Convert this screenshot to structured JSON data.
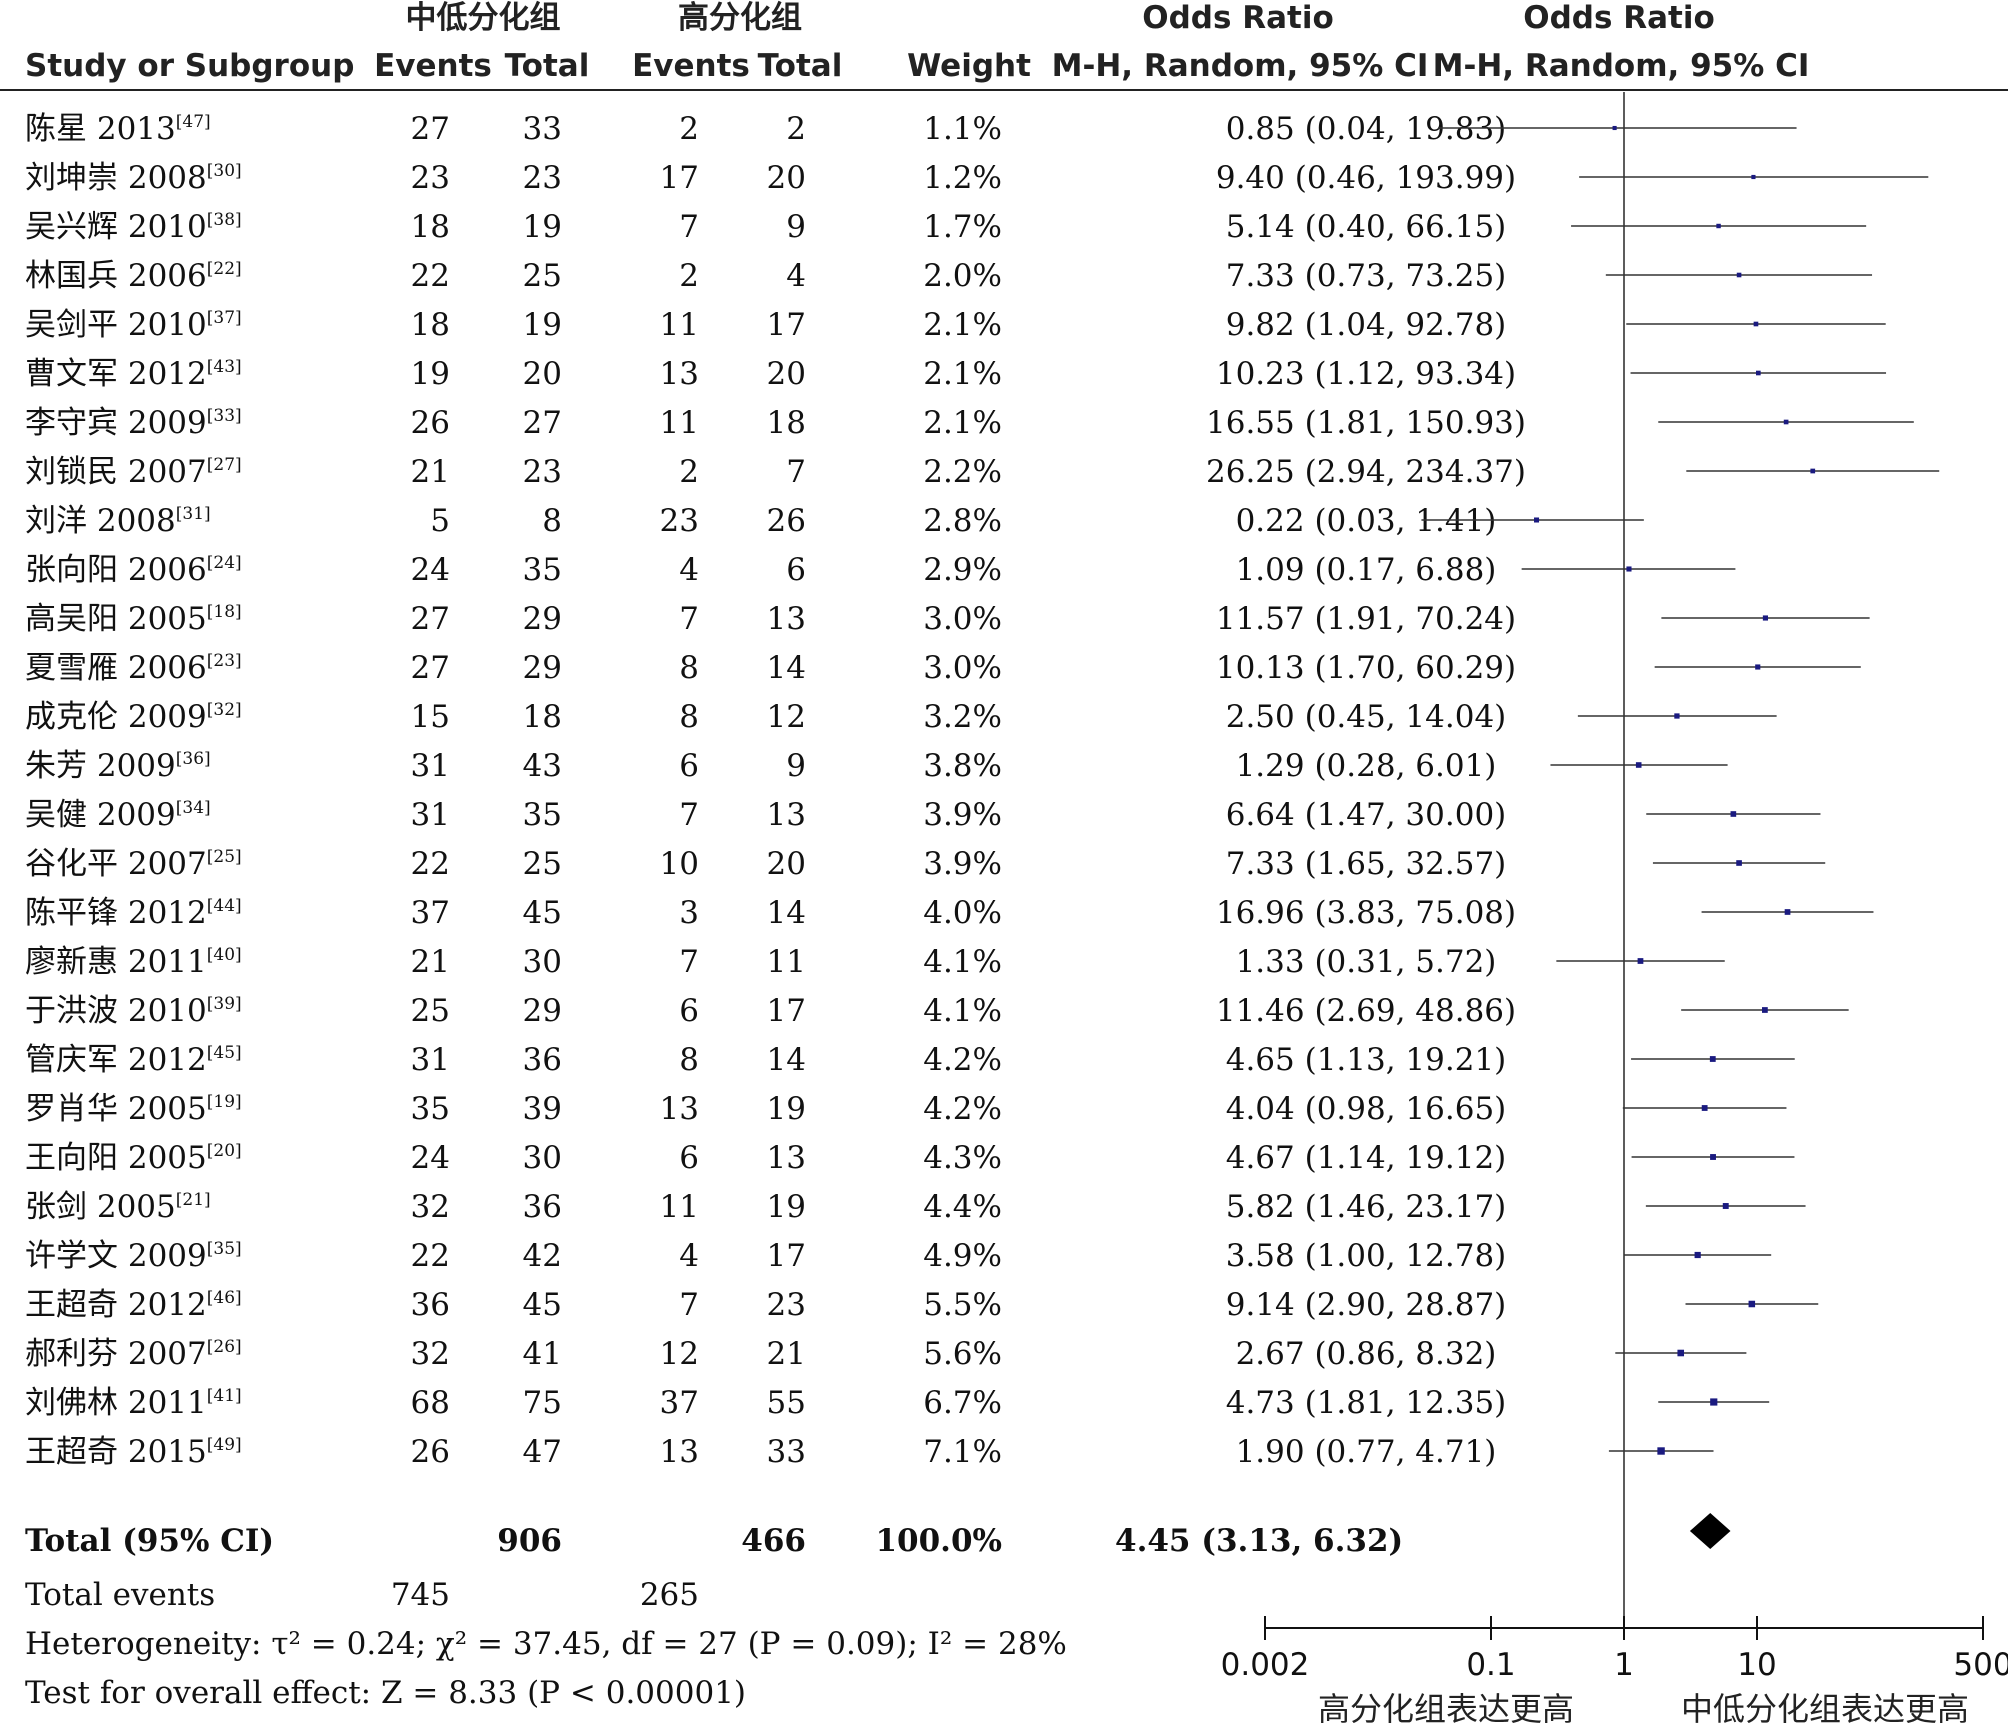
{
  "header": {
    "group1_title": "中低分化组",
    "group2_title": "高分化组",
    "or_title_1": "Odds Ratio",
    "or_title_2": "Odds Ratio",
    "col_study": "Study or Subgroup",
    "col_events_1": "Events",
    "col_total_1": "Total",
    "col_events_2": "Events",
    "col_total_2": "Total",
    "col_weight": "Weight",
    "col_or_ci": "M-H, Random, 95% CI",
    "col_plot_ci": "M-H, Random, 95% CI"
  },
  "chart_data": {
    "type": "forest",
    "x_scale": "log",
    "xlim": [
      0.002,
      500
    ],
    "x_ticks": [
      "0.002",
      "0.1",
      "1",
      "10",
      "500"
    ],
    "favours_left": "高分化组表达更高",
    "favours_right": "中低分化组表达更高",
    "marker_color": "#1a1a80",
    "studies": [
      {
        "name": "陈星 2013",
        "ref": "[47]",
        "events_1": "27",
        "total_1": "33",
        "events_2": "2",
        "total_2": "2",
        "weight": "1.1%",
        "or_text": "0.85 (0.04, 19.83)",
        "or": 0.85,
        "lo": 0.04,
        "hi": 19.83,
        "w": 1.1
      },
      {
        "name": "刘坤崇 2008",
        "ref": "[30]",
        "events_1": "23",
        "total_1": "23",
        "events_2": "17",
        "total_2": "20",
        "weight": "1.2%",
        "or_text": "9.40 (0.46, 193.99)",
        "or": 9.4,
        "lo": 0.46,
        "hi": 193.99,
        "w": 1.2
      },
      {
        "name": "吴兴辉 2010",
        "ref": "[38]",
        "events_1": "18",
        "total_1": "19",
        "events_2": "7",
        "total_2": "9",
        "weight": "1.7%",
        "or_text": "5.14 (0.40, 66.15)",
        "or": 5.14,
        "lo": 0.4,
        "hi": 66.15,
        "w": 1.7
      },
      {
        "name": "林国兵 2006",
        "ref": "[22]",
        "events_1": "22",
        "total_1": "25",
        "events_2": "2",
        "total_2": "4",
        "weight": "2.0%",
        "or_text": "7.33 (0.73, 73.25)",
        "or": 7.33,
        "lo": 0.73,
        "hi": 73.25,
        "w": 2.0
      },
      {
        "name": "吴剑平 2010",
        "ref": "[37]",
        "events_1": "18",
        "total_1": "19",
        "events_2": "11",
        "total_2": "17",
        "weight": "2.1%",
        "or_text": "9.82 (1.04, 92.78)",
        "or": 9.82,
        "lo": 1.04,
        "hi": 92.78,
        "w": 2.1
      },
      {
        "name": "曹文军 2012",
        "ref": "[43]",
        "events_1": "19",
        "total_1": "20",
        "events_2": "13",
        "total_2": "20",
        "weight": "2.1%",
        "or_text": "10.23 (1.12, 93.34)",
        "or": 10.23,
        "lo": 1.12,
        "hi": 93.34,
        "w": 2.1
      },
      {
        "name": "李守宾 2009",
        "ref": "[33]",
        "events_1": "26",
        "total_1": "27",
        "events_2": "11",
        "total_2": "18",
        "weight": "2.1%",
        "or_text": "16.55 (1.81, 150.93)",
        "or": 16.55,
        "lo": 1.81,
        "hi": 150.93,
        "w": 2.1
      },
      {
        "name": "刘锁民 2007",
        "ref": "[27]",
        "events_1": "21",
        "total_1": "23",
        "events_2": "2",
        "total_2": "7",
        "weight": "2.2%",
        "or_text": "26.25 (2.94, 234.37)",
        "or": 26.25,
        "lo": 2.94,
        "hi": 234.37,
        "w": 2.2
      },
      {
        "name": "刘洋 2008",
        "ref": "[31]",
        "events_1": "5",
        "total_1": "8",
        "events_2": "23",
        "total_2": "26",
        "weight": "2.8%",
        "or_text": "0.22 (0.03, 1.41)",
        "or": 0.22,
        "lo": 0.03,
        "hi": 1.41,
        "w": 2.8
      },
      {
        "name": "张向阳 2006",
        "ref": "[24]",
        "events_1": "24",
        "total_1": "35",
        "events_2": "4",
        "total_2": "6",
        "weight": "2.9%",
        "or_text": "1.09 (0.17, 6.88)",
        "or": 1.09,
        "lo": 0.17,
        "hi": 6.88,
        "w": 2.9
      },
      {
        "name": "高吴阳 2005",
        "ref": "[18]",
        "events_1": "27",
        "total_1": "29",
        "events_2": "7",
        "total_2": "13",
        "weight": "3.0%",
        "or_text": "11.57 (1.91, 70.24)",
        "or": 11.57,
        "lo": 1.91,
        "hi": 70.24,
        "w": 3.0
      },
      {
        "name": "夏雪雁 2006",
        "ref": "[23]",
        "events_1": "27",
        "total_1": "29",
        "events_2": "8",
        "total_2": "14",
        "weight": "3.0%",
        "or_text": "10.13 (1.70, 60.29)",
        "or": 10.13,
        "lo": 1.7,
        "hi": 60.29,
        "w": 3.0
      },
      {
        "name": "成克伦 2009",
        "ref": "[32]",
        "events_1": "15",
        "total_1": "18",
        "events_2": "8",
        "total_2": "12",
        "weight": "3.2%",
        "or_text": "2.50 (0.45, 14.04)",
        "or": 2.5,
        "lo": 0.45,
        "hi": 14.04,
        "w": 3.2
      },
      {
        "name": "朱芳 2009",
        "ref": "[36]",
        "events_1": "31",
        "total_1": "43",
        "events_2": "6",
        "total_2": "9",
        "weight": "3.8%",
        "or_text": "1.29 (0.28, 6.01)",
        "or": 1.29,
        "lo": 0.28,
        "hi": 6.01,
        "w": 3.8
      },
      {
        "name": "吴健 2009",
        "ref": "[34]",
        "events_1": "31",
        "total_1": "35",
        "events_2": "7",
        "total_2": "13",
        "weight": "3.9%",
        "or_text": "6.64 (1.47, 30.00)",
        "or": 6.64,
        "lo": 1.47,
        "hi": 30.0,
        "w": 3.9
      },
      {
        "name": "谷化平 2007",
        "ref": "[25]",
        "events_1": "22",
        "total_1": "25",
        "events_2": "10",
        "total_2": "20",
        "weight": "3.9%",
        "or_text": "7.33 (1.65, 32.57)",
        "or": 7.33,
        "lo": 1.65,
        "hi": 32.57,
        "w": 3.9
      },
      {
        "name": "陈平锋 2012",
        "ref": "[44]",
        "events_1": "37",
        "total_1": "45",
        "events_2": "3",
        "total_2": "14",
        "weight": "4.0%",
        "or_text": "16.96 (3.83, 75.08)",
        "or": 16.96,
        "lo": 3.83,
        "hi": 75.08,
        "w": 4.0
      },
      {
        "name": "廖新惠 2011",
        "ref": "[40]",
        "events_1": "21",
        "total_1": "30",
        "events_2": "7",
        "total_2": "11",
        "weight": "4.1%",
        "or_text": "1.33 (0.31, 5.72)",
        "or": 1.33,
        "lo": 0.31,
        "hi": 5.72,
        "w": 4.1
      },
      {
        "name": "于洪波 2010",
        "ref": "[39]",
        "events_1": "25",
        "total_1": "29",
        "events_2": "6",
        "total_2": "17",
        "weight": "4.1%",
        "or_text": "11.46 (2.69, 48.86)",
        "or": 11.46,
        "lo": 2.69,
        "hi": 48.86,
        "w": 4.1
      },
      {
        "name": "管庆军 2012",
        "ref": "[45]",
        "events_1": "31",
        "total_1": "36",
        "events_2": "8",
        "total_2": "14",
        "weight": "4.2%",
        "or_text": "4.65 (1.13, 19.21)",
        "or": 4.65,
        "lo": 1.13,
        "hi": 19.21,
        "w": 4.2
      },
      {
        "name": "罗肖华 2005",
        "ref": "[19]",
        "events_1": "35",
        "total_1": "39",
        "events_2": "13",
        "total_2": "19",
        "weight": "4.2%",
        "or_text": "4.04 (0.98, 16.65)",
        "or": 4.04,
        "lo": 0.98,
        "hi": 16.65,
        "w": 4.2
      },
      {
        "name": "王向阳 2005",
        "ref": "[20]",
        "events_1": "24",
        "total_1": "30",
        "events_2": "6",
        "total_2": "13",
        "weight": "4.3%",
        "or_text": "4.67 (1.14, 19.12)",
        "or": 4.67,
        "lo": 1.14,
        "hi": 19.12,
        "w": 4.3
      },
      {
        "name": "张剑 2005",
        "ref": "[21]",
        "events_1": "32",
        "total_1": "36",
        "events_2": "11",
        "total_2": "19",
        "weight": "4.4%",
        "or_text": "5.82 (1.46, 23.17)",
        "or": 5.82,
        "lo": 1.46,
        "hi": 23.17,
        "w": 4.4
      },
      {
        "name": "许学文 2009",
        "ref": "[35]",
        "events_1": "22",
        "total_1": "42",
        "events_2": "4",
        "total_2": "17",
        "weight": "4.9%",
        "or_text": "3.58 (1.00, 12.78)",
        "or": 3.58,
        "lo": 1.0,
        "hi": 12.78,
        "w": 4.9
      },
      {
        "name": "王超奇 2012",
        "ref": "[46]",
        "events_1": "36",
        "total_1": "45",
        "events_2": "7",
        "total_2": "23",
        "weight": "5.5%",
        "or_text": "9.14 (2.90, 28.87)",
        "or": 9.14,
        "lo": 2.9,
        "hi": 28.87,
        "w": 5.5
      },
      {
        "name": "郝利芬 2007",
        "ref": "[26]",
        "events_1": "32",
        "total_1": "41",
        "events_2": "12",
        "total_2": "21",
        "weight": "5.6%",
        "or_text": "2.67 (0.86, 8.32)",
        "or": 2.67,
        "lo": 0.86,
        "hi": 8.32,
        "w": 5.6
      },
      {
        "name": "刘佛林 2011",
        "ref": "[41]",
        "events_1": "68",
        "total_1": "75",
        "events_2": "37",
        "total_2": "55",
        "weight": "6.7%",
        "or_text": "4.73 (1.81, 12.35)",
        "or": 4.73,
        "lo": 1.81,
        "hi": 12.35,
        "w": 6.7
      },
      {
        "name": "王超奇 2015",
        "ref": "[49]",
        "events_1": "26",
        "total_1": "47",
        "events_2": "13",
        "total_2": "33",
        "weight": "7.1%",
        "or_text": "1.90 (0.77, 4.71)",
        "or": 1.9,
        "lo": 0.77,
        "hi": 4.71,
        "w": 7.1
      }
    ],
    "total": {
      "label": "Total (95% CI)",
      "total_1": "906",
      "total_2": "466",
      "weight": "100.0%",
      "or_text": "4.45 (3.13, 6.32)",
      "or": 4.45,
      "lo": 3.13,
      "hi": 6.32
    },
    "total_events": {
      "label": "Total events",
      "events_1": "745",
      "events_2": "265"
    },
    "heterogeneity": "Heterogeneity: τ² = 0.24; χ² = 37.45, df = 27 (P = 0.09); I² = 28%",
    "overall_effect": "Test for overall effect: Z = 8.33 (P < 0.00001)"
  }
}
